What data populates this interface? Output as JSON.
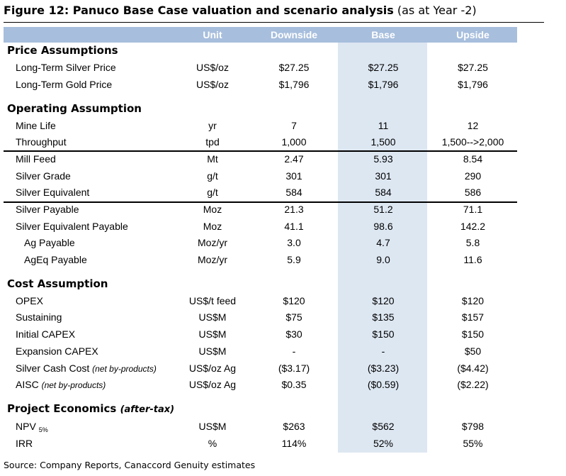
{
  "figure": {
    "title_bold": "Figure 12: Panuco Base Case valuation and scenario analysis",
    "title_suffix": " (as at Year -2)",
    "source": "Source: Company Reports, Canaccord Genuity estimates"
  },
  "header": {
    "unit": "Unit",
    "downside": "Downside",
    "base": "Base",
    "upside": "Upside"
  },
  "colors": {
    "header_bar": "#a7bedd",
    "base_band": "#dde7f2"
  },
  "sections": {
    "price": {
      "title": "Price Assumptions"
    },
    "operating": {
      "title": "Operating Assumption"
    },
    "cost": {
      "title": "Cost Assumption"
    },
    "economics": {
      "title": "Project Economics",
      "note": "(after-tax)"
    }
  },
  "rows": {
    "silver_price": {
      "label": "Long-Term Silver Price",
      "unit": "US$/oz",
      "downside": "$27.25",
      "base": "$27.25",
      "upside": "$27.25"
    },
    "gold_price": {
      "label": "Long-Term Gold Price",
      "unit": "US$/oz",
      "downside": "$1,796",
      "base": "$1,796",
      "upside": "$1,796"
    },
    "mine_life": {
      "label": "Mine Life",
      "unit": "yr",
      "downside": "7",
      "base": "11",
      "upside": "12"
    },
    "throughput": {
      "label": "Throughput",
      "unit": "tpd",
      "downside": "1,000",
      "base": "1,500",
      "upside": "1,500-->2,000"
    },
    "mill_feed": {
      "label": "Mill Feed",
      "unit": "Mt",
      "downside": "2.47",
      "base": "5.93",
      "upside": "8.54"
    },
    "silver_grade": {
      "label": "Silver Grade",
      "unit": "g/t",
      "downside": "301",
      "base": "301",
      "upside": "290"
    },
    "silver_eq": {
      "label": "Silver Equivalent",
      "unit": "g/t",
      "downside": "584",
      "base": "584",
      "upside": "586"
    },
    "silver_payable": {
      "label": "Silver Payable",
      "unit": "Moz",
      "downside": "21.3",
      "base": "51.2",
      "upside": "71.1"
    },
    "silver_eq_payable": {
      "label": "Silver Equivalent Payable",
      "unit": "Moz",
      "downside": "41.1",
      "base": "98.6",
      "upside": "142.2"
    },
    "ag_payable": {
      "label": "Ag Payable",
      "unit": "Moz/yr",
      "downside": "3.0",
      "base": "4.7",
      "upside": "5.8"
    },
    "ageq_payable": {
      "label": "AgEq Payable",
      "unit": "Moz/yr",
      "downside": "5.9",
      "base": "9.0",
      "upside": "11.6"
    },
    "opex": {
      "label": "OPEX",
      "unit": "US$/t feed",
      "downside": "$120",
      "base": "$120",
      "upside": "$120"
    },
    "sustaining": {
      "label": "Sustaining",
      "unit": "US$M",
      "downside": "$75",
      "base": "$135",
      "upside": "$157"
    },
    "initial_capex": {
      "label": "Initial CAPEX",
      "unit": "US$M",
      "downside": "$30",
      "base": "$150",
      "upside": "$150"
    },
    "expansion_capex": {
      "label": "Expansion CAPEX",
      "unit": "US$M",
      "downside": "-",
      "base": "-",
      "upside": "$50"
    },
    "silver_cash_cost": {
      "label": "Silver Cash Cost",
      "note": "(net by-products)",
      "unit": "US$/oz Ag",
      "downside": "($3.17)",
      "base": "($3.23)",
      "upside": "($4.42)"
    },
    "aisc": {
      "label": "AISC",
      "note": "(net by-products)",
      "unit": "US$/oz Ag",
      "downside": "$0.35",
      "base": "($0.59)",
      "upside": "($2.22)"
    },
    "npv": {
      "label": "NPV",
      "sub": "5%",
      "unit": "US$M",
      "downside": "$263",
      "base": "$562",
      "upside": "$798"
    },
    "irr": {
      "label": "IRR",
      "unit": "%",
      "downside": "114%",
      "base": "52%",
      "upside": "55%"
    }
  }
}
